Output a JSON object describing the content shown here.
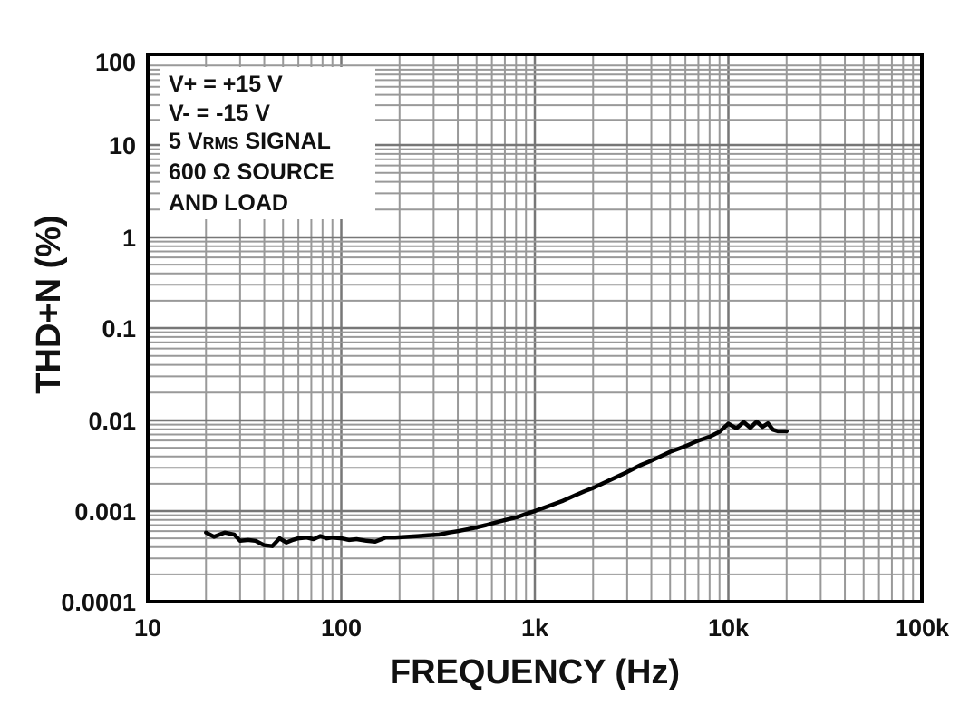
{
  "chart_data": {
    "type": "line",
    "xlabel": "FREQUENCY (Hz)",
    "ylabel": "THD+N (%)",
    "x_scale": "log",
    "y_scale": "log",
    "xlim": [
      10,
      100000
    ],
    "ylim": [
      0.0001,
      100
    ],
    "grid": true,
    "x_ticks": [
      10,
      100,
      1000,
      10000,
      100000
    ],
    "x_tick_labels": [
      "10",
      "100",
      "1k",
      "10k",
      "100k"
    ],
    "y_ticks": [
      0.0001,
      0.001,
      0.01,
      0.1,
      1,
      10,
      100
    ],
    "y_tick_labels": [
      "0.0001",
      "0.001",
      "0.01",
      "0.1",
      "1",
      "10",
      "100"
    ],
    "annotation": {
      "lines": [
        {
          "text": "V+ = +15 V"
        },
        {
          "text": "V- = -15 V"
        },
        {
          "pre": "5 V",
          "sub": "RMS",
          "post": " SIGNAL"
        },
        {
          "text": "600 Ω SOURCE"
        },
        {
          "text": "AND LOAD"
        }
      ]
    },
    "series": [
      {
        "color": "#000000",
        "x": [
          20,
          22,
          25,
          28,
          30,
          33,
          36,
          40,
          44,
          48,
          52,
          56,
          60,
          66,
          72,
          78,
          84,
          90,
          100,
          110,
          120,
          135,
          150,
          170,
          190,
          220,
          250,
          280,
          320,
          360,
          400,
          450,
          500,
          560,
          630,
          710,
          800,
          900,
          1000,
          1200,
          1400,
          1600,
          1800,
          2000,
          2500,
          3000,
          3500,
          4000,
          5000,
          6000,
          7000,
          8000,
          9000,
          10000,
          11000,
          12000,
          13000,
          14000,
          15000,
          16000,
          17000,
          18000,
          20000
        ],
        "y": [
          0.00058,
          0.00052,
          0.00058,
          0.00055,
          0.00047,
          0.00048,
          0.00047,
          0.00042,
          0.00041,
          0.0005,
          0.00045,
          0.00048,
          0.0005,
          0.00051,
          0.00049,
          0.00053,
          0.0005,
          0.00051,
          0.0005,
          0.00048,
          0.00049,
          0.00047,
          0.00046,
          0.00051,
          0.00051,
          0.00052,
          0.00053,
          0.00054,
          0.00055,
          0.00058,
          0.0006,
          0.00063,
          0.00066,
          0.0007,
          0.00075,
          0.0008,
          0.00085,
          0.00093,
          0.001,
          0.00115,
          0.0013,
          0.00148,
          0.00165,
          0.0018,
          0.00225,
          0.0027,
          0.0032,
          0.0036,
          0.0045,
          0.0052,
          0.006,
          0.0066,
          0.0075,
          0.0092,
          0.0082,
          0.0096,
          0.0083,
          0.0097,
          0.0085,
          0.0093,
          0.0079,
          0.0076,
          0.0076
        ]
      }
    ]
  }
}
